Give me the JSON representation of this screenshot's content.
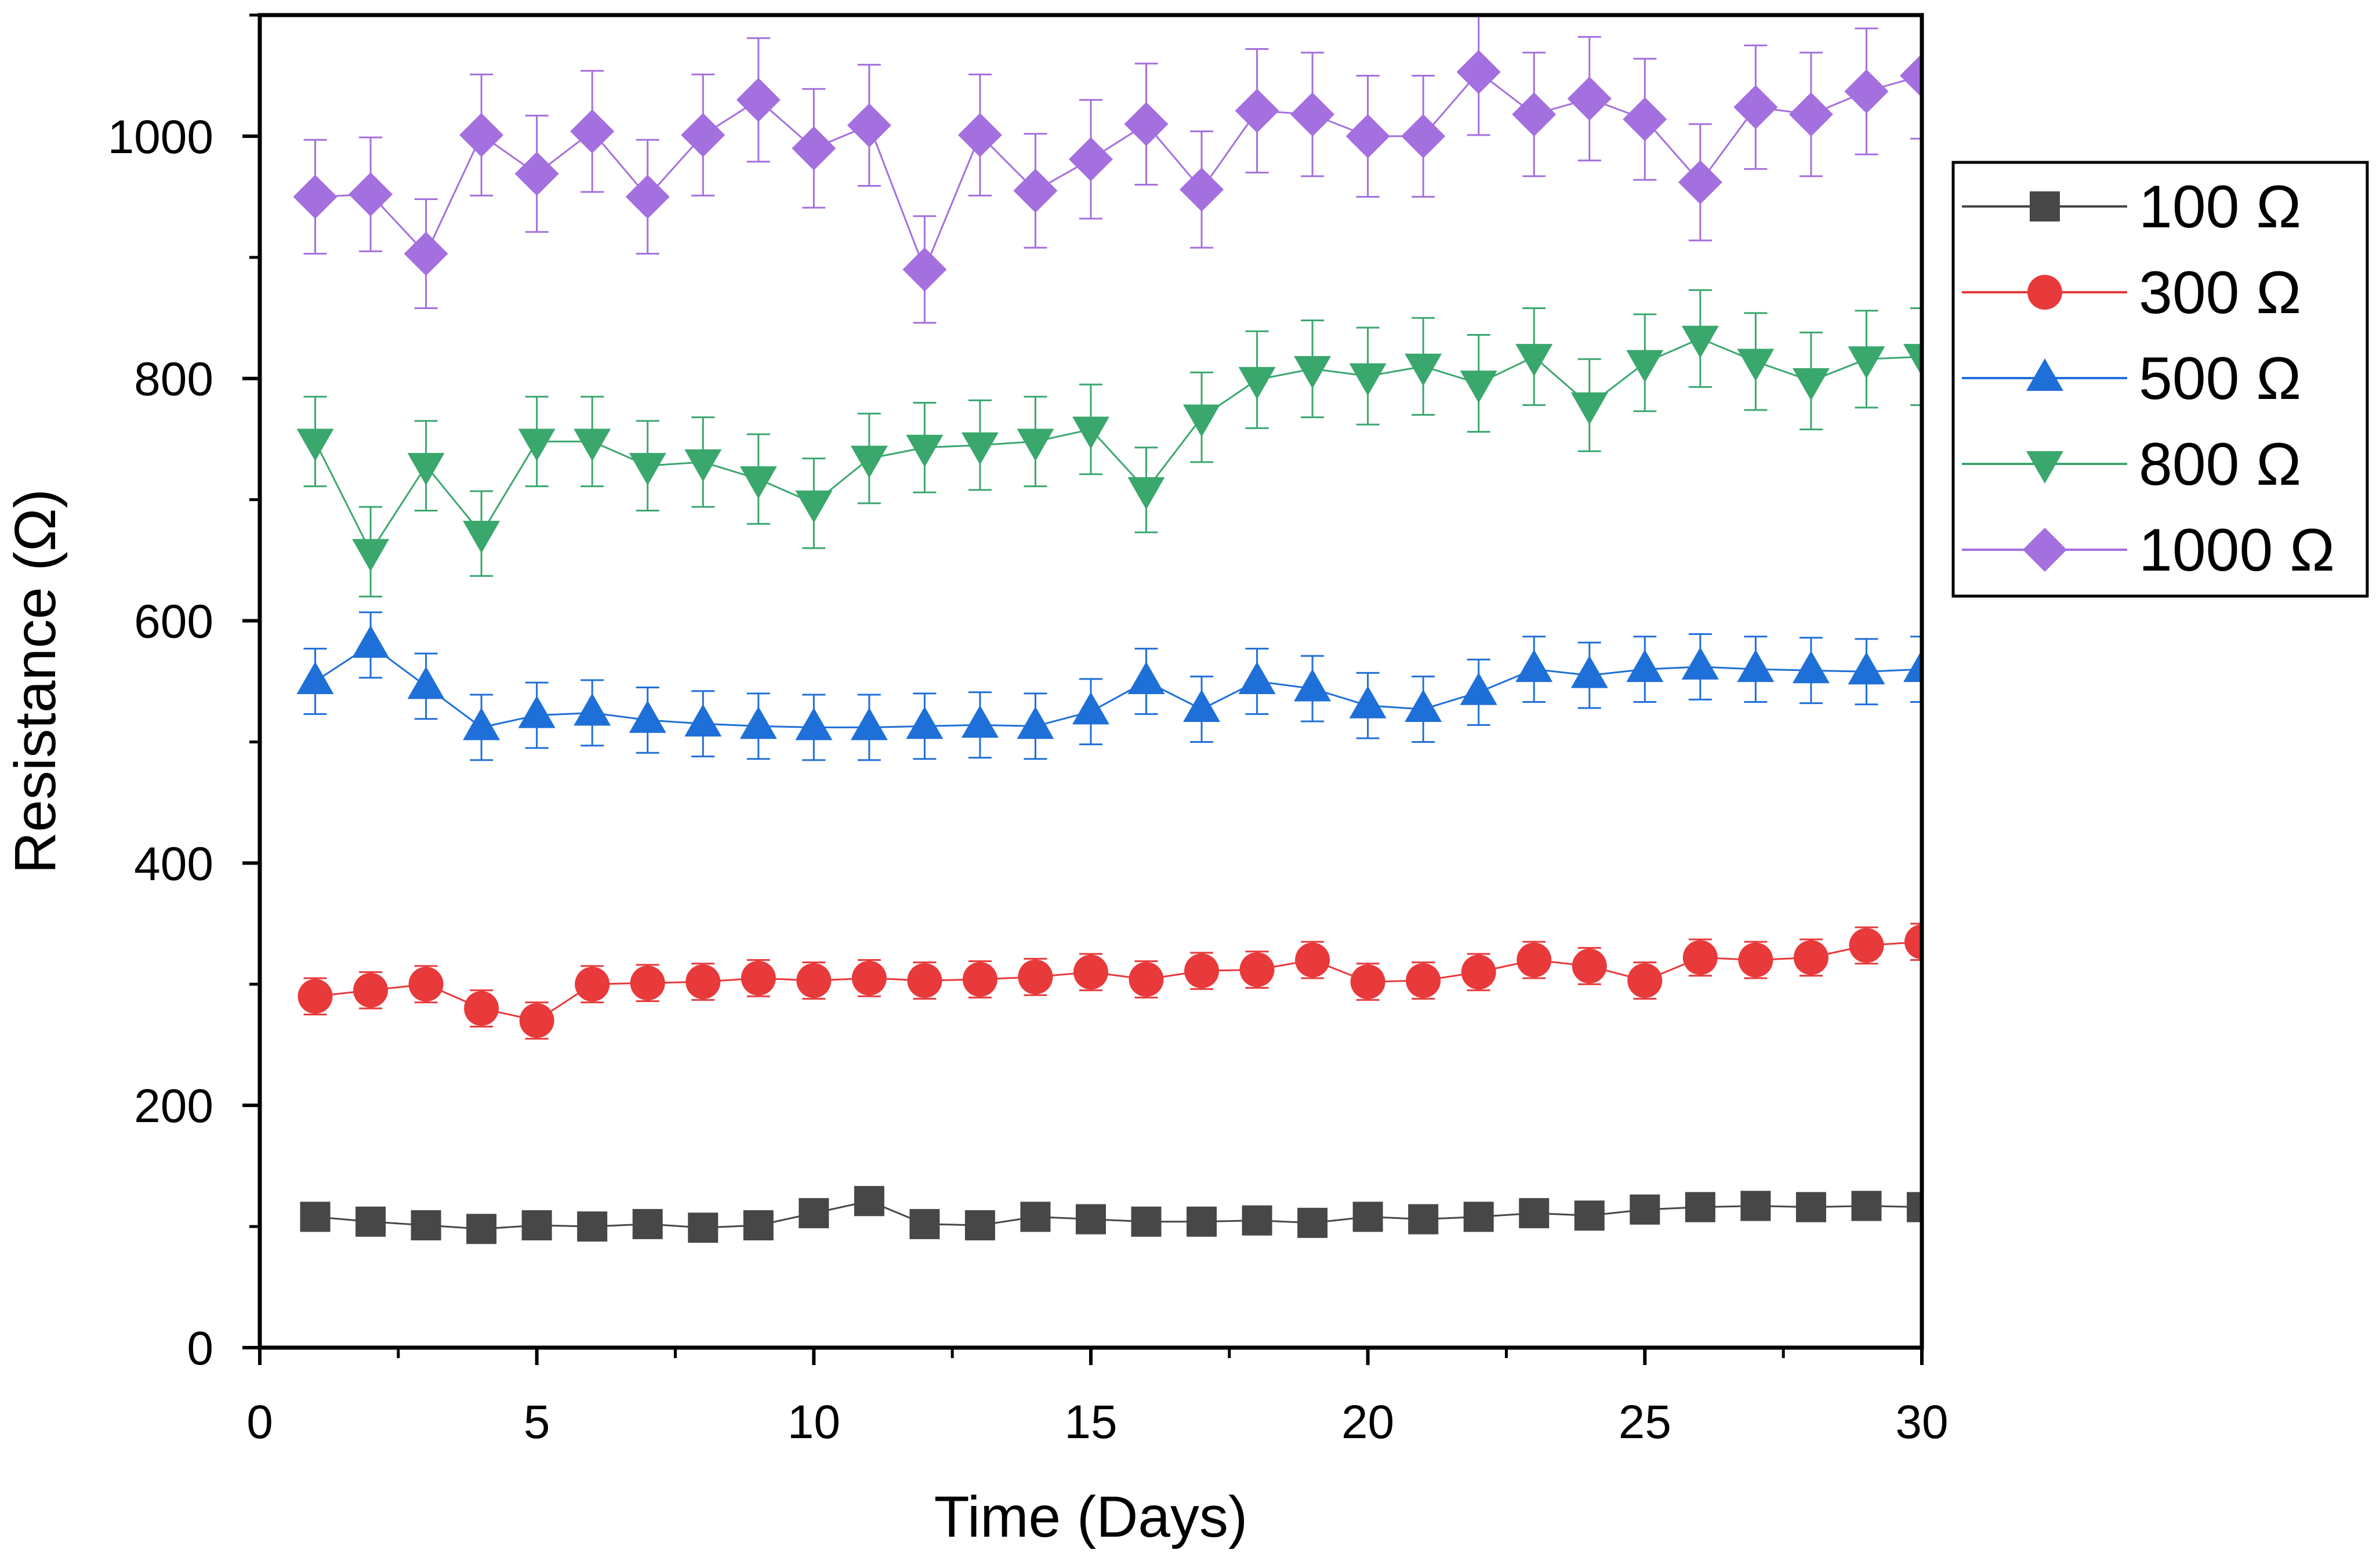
{
  "chart_data": {
    "type": "line",
    "title": "",
    "xlabel": "Time (Days)",
    "ylabel": "Resistance (Ω)",
    "xlim": [
      0,
      30
    ],
    "ylim": [
      0,
      1100
    ],
    "x_ticks": [
      "0",
      "5",
      "10",
      "15",
      "20",
      "25",
      "30"
    ],
    "y_ticks": [
      "0",
      "200",
      "400",
      "600",
      "800",
      "1000"
    ],
    "grid": false,
    "legend_position": "right, outside plot area",
    "x": [
      1,
      2,
      3,
      4,
      5,
      6,
      7,
      8,
      9,
      10,
      11,
      12,
      13,
      14,
      15,
      16,
      17,
      18,
      19,
      20,
      21,
      22,
      23,
      24,
      25,
      26,
      27,
      28,
      29,
      30
    ],
    "series": [
      {
        "name": "100 Ω",
        "marker": "square",
        "color": "#474747",
        "values": [
          108,
          104,
          101,
          98,
          101,
          100,
          102,
          99,
          101,
          111,
          121,
          102,
          101,
          108,
          106,
          104,
          104,
          105,
          103,
          108,
          106,
          108,
          111,
          109,
          114,
          116,
          117,
          116,
          117,
          116
        ],
        "errors": [
          8,
          8,
          8,
          8,
          8,
          8,
          8,
          8,
          8,
          8,
          8,
          8,
          8,
          8,
          8,
          8,
          8,
          8,
          8,
          8,
          8,
          8,
          8,
          8,
          8,
          8,
          8,
          8,
          8,
          8
        ]
      },
      {
        "name": "300 Ω",
        "marker": "circle",
        "color": "#e8393b",
        "values": [
          290,
          295,
          300,
          280,
          270,
          300,
          301,
          302,
          305,
          303,
          305,
          303,
          304,
          306,
          310,
          304,
          311,
          312,
          320,
          302,
          303,
          310,
          320,
          315,
          303,
          322,
          320,
          322,
          332,
          335
        ],
        "errors": [
          15,
          15,
          15,
          15,
          15,
          15,
          15,
          15,
          15,
          15,
          15,
          15,
          15,
          15,
          15,
          15,
          15,
          15,
          15,
          15,
          15,
          15,
          15,
          15,
          15,
          15,
          15,
          15,
          15,
          15
        ]
      },
      {
        "name": "500 Ω",
        "marker": "triangle-up",
        "color": "#1f6fd8",
        "values": [
          550,
          580,
          546,
          512,
          522,
          524,
          518,
          515,
          513,
          512,
          512,
          513,
          514,
          513,
          525,
          550,
          527,
          550,
          544,
          530,
          527,
          541,
          560,
          555,
          560,
          562,
          560,
          559,
          558,
          560
        ],
        "errors": [
          27,
          27,
          27,
          27,
          27,
          27,
          27,
          27,
          27,
          27,
          27,
          27,
          27,
          27,
          27,
          27,
          27,
          27,
          27,
          27,
          27,
          27,
          27,
          27,
          27,
          27,
          27,
          27,
          27,
          27
        ]
      },
      {
        "name": "800 Ω",
        "marker": "triangle-down",
        "color": "#3aa76d",
        "values": [
          748,
          657,
          728,
          672,
          748,
          748,
          728,
          731,
          717,
          697,
          734,
          743,
          745,
          748,
          758,
          708,
          768,
          799,
          808,
          802,
          810,
          796,
          818,
          778,
          813,
          833,
          814,
          798,
          816,
          818
        ],
        "errors": [
          37,
          37,
          37,
          35,
          37,
          37,
          37,
          37,
          37,
          37,
          37,
          37,
          37,
          37,
          37,
          35,
          37,
          40,
          40,
          40,
          40,
          40,
          40,
          38,
          40,
          40,
          40,
          40,
          40,
          40
        ]
      },
      {
        "name": "1000 Ω",
        "marker": "diamond",
        "color": "#a46fde",
        "values": [
          950,
          952,
          903,
          1001,
          969,
          1004,
          950,
          1001,
          1030,
          990,
          1009,
          890,
          1001,
          955,
          981,
          1010,
          956,
          1021,
          1018,
          1000,
          1000,
          1053,
          1018,
          1031,
          1014,
          962,
          1024,
          1018,
          1037,
          1050
        ],
        "errors": [
          47,
          47,
          45,
          50,
          48,
          50,
          47,
          50,
          51,
          49,
          50,
          44,
          50,
          47,
          49,
          50,
          48,
          51,
          51,
          50,
          50,
          52,
          51,
          51,
          50,
          48,
          51,
          51,
          52,
          52
        ]
      }
    ]
  }
}
